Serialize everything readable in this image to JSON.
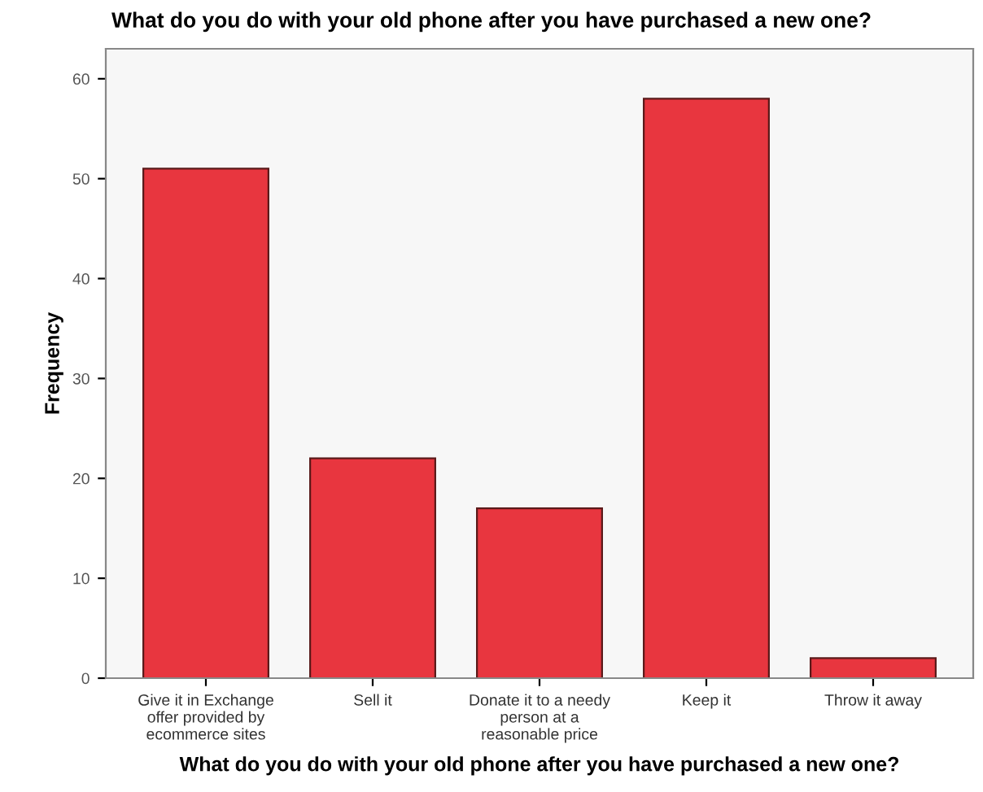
{
  "chart_data": {
    "type": "bar",
    "title": "What do you do with your old phone after you have purchased a new one?",
    "xlabel": "What do you do with your old phone after you have purchased a new one?",
    "ylabel": "Frequency",
    "categories": [
      "Give it in Exchange\noffer provided by\necommerce sites",
      "Sell it",
      "Donate it to a needy\nperson at a\nreasonable price",
      "Keep it",
      "Throw it away"
    ],
    "values": [
      51,
      22,
      17,
      58,
      2
    ],
    "color": "#e8363f",
    "ylim": [
      0,
      63
    ],
    "yticks": [
      0,
      10,
      20,
      30,
      40,
      50,
      60
    ],
    "grid": false
  }
}
